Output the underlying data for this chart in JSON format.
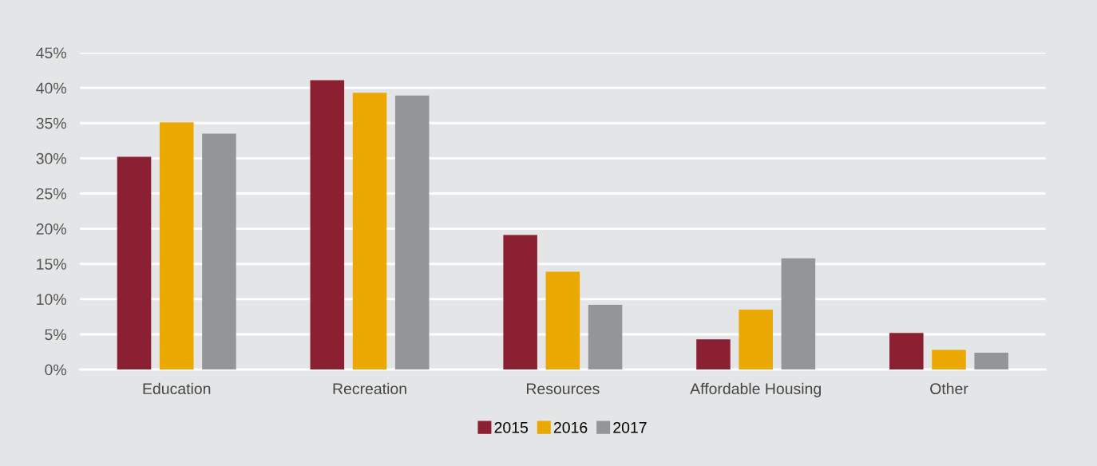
{
  "chart_data": {
    "type": "bar",
    "categories": [
      "Education",
      "Recreation",
      "Resources",
      "Affordable Housing",
      "Other"
    ],
    "series": [
      {
        "name": "2015",
        "color": "#8b2032",
        "values": [
          30.2,
          41.1,
          19.1,
          4.3,
          5.2
        ]
      },
      {
        "name": "2016",
        "color": "#eaa800",
        "values": [
          35.1,
          39.3,
          13.9,
          8.5,
          2.8
        ]
      },
      {
        "name": "2017",
        "color": "#939598",
        "values": [
          33.5,
          38.9,
          9.2,
          15.8,
          2.4
        ]
      }
    ],
    "ylim": [
      0,
      45
    ],
    "yticks": [
      {
        "value": 0,
        "label": "0%"
      },
      {
        "value": 5,
        "label": "5%"
      },
      {
        "value": 10,
        "label": "10%"
      },
      {
        "value": 15,
        "label": "15%"
      },
      {
        "value": 20,
        "label": "20%"
      },
      {
        "value": 25,
        "label": "25%"
      },
      {
        "value": 30,
        "label": "30%"
      },
      {
        "value": 35,
        "label": "35%"
      },
      {
        "value": 40,
        "label": "40%"
      },
      {
        "value": 45,
        "label": "45%"
      }
    ],
    "grid": "y",
    "legend": "bottom"
  }
}
